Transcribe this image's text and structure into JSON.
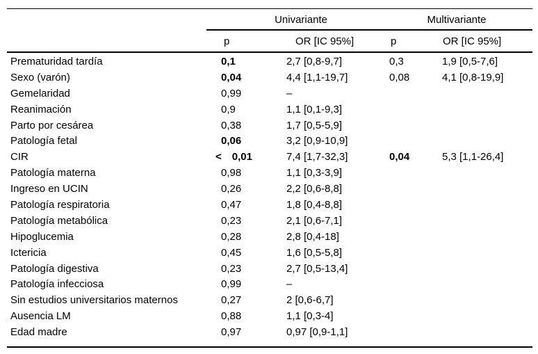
{
  "table": {
    "group_headers": [
      "Univariante",
      "Multivariante"
    ],
    "column_headers": [
      "p",
      "OR [IC 95%]",
      "p",
      "OR [IC 95%]"
    ],
    "rows": [
      {
        "label": "Prematuridad tardía",
        "p_uni": "0,1",
        "p_uni_bold": true,
        "or_uni": "2,7 [0,8-9,7]",
        "p_multi": "0,3",
        "p_multi_bold": false,
        "or_multi": "1,9 [0,5-7,6]"
      },
      {
        "label": "Sexo (varón)",
        "p_uni": "0,04",
        "p_uni_bold": true,
        "or_uni": "4,4 [1,1-19,7]",
        "p_multi": "0,08",
        "p_multi_bold": false,
        "or_multi": "4,1 [0,8-19,9]"
      },
      {
        "label": "Gemelaridad",
        "p_uni": "0,99",
        "p_uni_bold": false,
        "or_uni": "–",
        "p_multi": "",
        "p_multi_bold": false,
        "or_multi": ""
      },
      {
        "label": "Reanimación",
        "p_uni": "0,9",
        "p_uni_bold": false,
        "or_uni": "1,1 [0,1-9,3]",
        "p_multi": "",
        "p_multi_bold": false,
        "or_multi": ""
      },
      {
        "label": "Parto por cesárea",
        "p_uni": "0,38",
        "p_uni_bold": false,
        "or_uni": "1,7 [0,5-5,9]",
        "p_multi": "",
        "p_multi_bold": false,
        "or_multi": ""
      },
      {
        "label": "Patología fetal",
        "p_uni": "0,06",
        "p_uni_bold": true,
        "or_uni": "3,2 [0,9-10,9]",
        "p_multi": "",
        "p_multi_bold": false,
        "or_multi": ""
      },
      {
        "label": "CIR",
        "p_uni": "< 0,01",
        "p_uni_bold": true,
        "or_uni": "7,4 [1,7-32,3]",
        "p_multi": "0,04",
        "p_multi_bold": true,
        "or_multi": "5,3 [1,1-26,4]"
      },
      {
        "label": "Patología materna",
        "p_uni": "0,98",
        "p_uni_bold": false,
        "or_uni": "1,1 [0,3-3,9]",
        "p_multi": "",
        "p_multi_bold": false,
        "or_multi": ""
      },
      {
        "label": "Ingreso en UCIN",
        "p_uni": "0,26",
        "p_uni_bold": false,
        "or_uni": "2,2 [0,6-8,8]",
        "p_multi": "",
        "p_multi_bold": false,
        "or_multi": ""
      },
      {
        "label": "Patología respiratoria",
        "p_uni": "0,47",
        "p_uni_bold": false,
        "or_uni": "1,8 [0,4-8,8]",
        "p_multi": "",
        "p_multi_bold": false,
        "or_multi": ""
      },
      {
        "label": "Patología metabólica",
        "p_uni": "0,23",
        "p_uni_bold": false,
        "or_uni": "2,1 [0,6-7,1]",
        "p_multi": "",
        "p_multi_bold": false,
        "or_multi": ""
      },
      {
        "label": "Hipoglucemia",
        "p_uni": "0,28",
        "p_uni_bold": false,
        "or_uni": "2,8 [0,4-18]",
        "p_multi": "",
        "p_multi_bold": false,
        "or_multi": ""
      },
      {
        "label": "Ictericia",
        "p_uni": "0,45",
        "p_uni_bold": false,
        "or_uni": "1,6 [0,5-5,8]",
        "p_multi": "",
        "p_multi_bold": false,
        "or_multi": ""
      },
      {
        "label": "Patología digestiva",
        "p_uni": "0,23",
        "p_uni_bold": false,
        "or_uni": "2,7 [0,5-13,4]",
        "p_multi": "",
        "p_multi_bold": false,
        "or_multi": ""
      },
      {
        "label": "Patología infecciosa",
        "p_uni": "0,99",
        "p_uni_bold": false,
        "or_uni": "–",
        "p_multi": "",
        "p_multi_bold": false,
        "or_multi": ""
      },
      {
        "label": "Sin estudios universitarios maternos",
        "p_uni": "0,27",
        "p_uni_bold": false,
        "or_uni": "2 [0,6-6,7]",
        "p_multi": "",
        "p_multi_bold": false,
        "or_multi": ""
      },
      {
        "label": "Ausencia LM",
        "p_uni": "0,88",
        "p_uni_bold": false,
        "or_uni": "1,1 [0,3-4]",
        "p_multi": "",
        "p_multi_bold": false,
        "or_multi": ""
      },
      {
        "label": "Edad madre",
        "p_uni": "0,97",
        "p_uni_bold": false,
        "or_uni": "0,97 [0,9-1,1]",
        "p_multi": "",
        "p_multi_bold": false,
        "or_multi": ""
      }
    ]
  },
  "colors": {
    "text": "#000000",
    "background": "#ffffff",
    "rule": "#000000"
  }
}
